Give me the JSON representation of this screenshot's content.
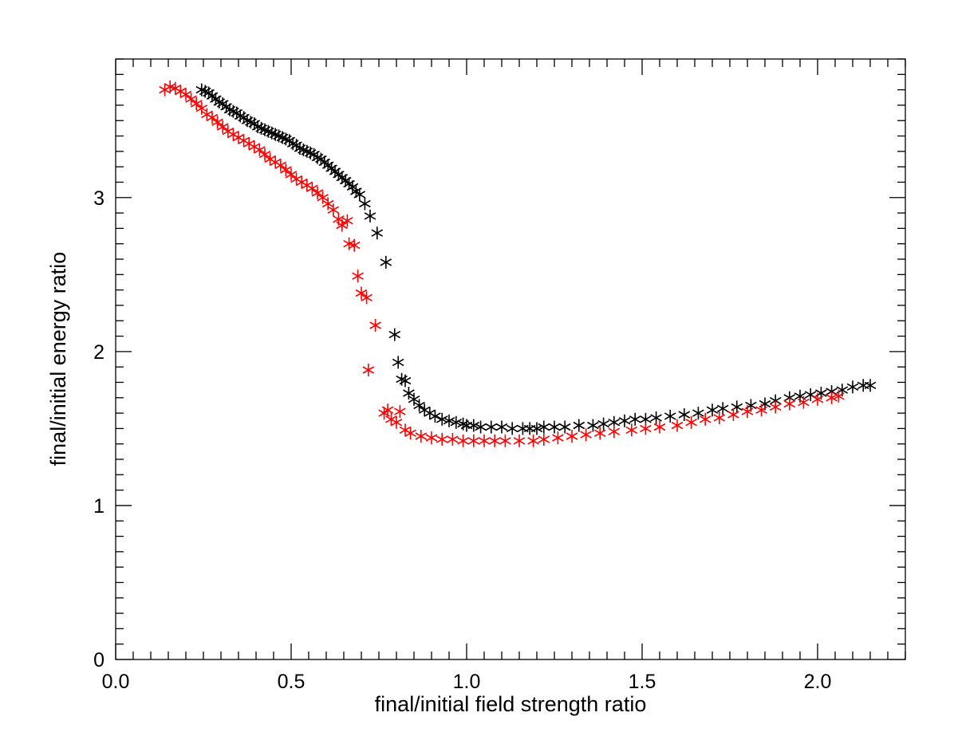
{
  "chart_data": {
    "type": "scatter",
    "title": "",
    "xlabel": "final/initial field strength ratio",
    "ylabel": "final/initial energy ratio",
    "xlim": [
      0.0,
      2.25
    ],
    "ylim": [
      0,
      3.9
    ],
    "x_ticks": [
      0.0,
      0.5,
      1.0,
      1.5,
      2.0
    ],
    "x_tick_labels": [
      "0.0",
      "0.5",
      "1.0",
      "1.5",
      "2.0"
    ],
    "y_ticks": [
      0,
      1,
      2,
      3
    ],
    "y_tick_labels": [
      "0",
      "1",
      "2",
      "3"
    ],
    "x_minor_step": 0.05,
    "y_minor_step": 0.1,
    "marker": "asterisk",
    "grid": false,
    "legend": "none",
    "series": [
      {
        "color": "#000000",
        "points": [
          [
            0.245,
            3.7
          ],
          [
            0.255,
            3.69
          ],
          [
            0.265,
            3.68
          ],
          [
            0.275,
            3.66
          ],
          [
            0.285,
            3.64
          ],
          [
            0.295,
            3.62
          ],
          [
            0.305,
            3.61
          ],
          [
            0.315,
            3.59
          ],
          [
            0.325,
            3.57
          ],
          [
            0.335,
            3.56
          ],
          [
            0.345,
            3.55
          ],
          [
            0.355,
            3.53
          ],
          [
            0.365,
            3.52
          ],
          [
            0.375,
            3.5
          ],
          [
            0.385,
            3.49
          ],
          [
            0.395,
            3.48
          ],
          [
            0.405,
            3.46
          ],
          [
            0.415,
            3.45
          ],
          [
            0.425,
            3.44
          ],
          [
            0.435,
            3.43
          ],
          [
            0.445,
            3.42
          ],
          [
            0.455,
            3.41
          ],
          [
            0.465,
            3.4
          ],
          [
            0.475,
            3.39
          ],
          [
            0.485,
            3.38
          ],
          [
            0.495,
            3.37
          ],
          [
            0.505,
            3.35
          ],
          [
            0.515,
            3.34
          ],
          [
            0.525,
            3.32
          ],
          [
            0.535,
            3.31
          ],
          [
            0.545,
            3.3
          ],
          [
            0.555,
            3.29
          ],
          [
            0.565,
            3.28
          ],
          [
            0.575,
            3.26
          ],
          [
            0.585,
            3.25
          ],
          [
            0.595,
            3.23
          ],
          [
            0.605,
            3.21
          ],
          [
            0.615,
            3.19
          ],
          [
            0.625,
            3.17
          ],
          [
            0.635,
            3.15
          ],
          [
            0.645,
            3.13
          ],
          [
            0.655,
            3.11
          ],
          [
            0.665,
            3.09
          ],
          [
            0.675,
            3.07
          ],
          [
            0.685,
            3.04
          ],
          [
            0.695,
            3.02
          ],
          [
            0.71,
            2.96
          ],
          [
            0.725,
            2.88
          ],
          [
            0.745,
            2.77
          ],
          [
            0.77,
            2.58
          ],
          [
            0.795,
            2.11
          ],
          [
            0.805,
            1.93
          ],
          [
            0.815,
            1.82
          ],
          [
            0.825,
            1.81
          ],
          [
            0.835,
            1.73
          ],
          [
            0.85,
            1.69
          ],
          [
            0.865,
            1.65
          ],
          [
            0.88,
            1.62
          ],
          [
            0.895,
            1.6
          ],
          [
            0.91,
            1.58
          ],
          [
            0.93,
            1.56
          ],
          [
            0.95,
            1.55
          ],
          [
            0.97,
            1.54
          ],
          [
            0.99,
            1.53
          ],
          [
            1.0,
            1.52
          ],
          [
            1.02,
            1.52
          ],
          [
            1.04,
            1.51
          ],
          [
            1.07,
            1.51
          ],
          [
            1.1,
            1.51
          ],
          [
            1.13,
            1.5
          ],
          [
            1.16,
            1.5
          ],
          [
            1.18,
            1.5
          ],
          [
            1.2,
            1.5
          ],
          [
            1.22,
            1.51
          ],
          [
            1.25,
            1.51
          ],
          [
            1.28,
            1.51
          ],
          [
            1.32,
            1.52
          ],
          [
            1.36,
            1.52
          ],
          [
            1.39,
            1.53
          ],
          [
            1.42,
            1.54
          ],
          [
            1.45,
            1.55
          ],
          [
            1.48,
            1.56
          ],
          [
            1.51,
            1.56
          ],
          [
            1.54,
            1.57
          ],
          [
            1.58,
            1.58
          ],
          [
            1.62,
            1.59
          ],
          [
            1.66,
            1.6
          ],
          [
            1.7,
            1.62
          ],
          [
            1.73,
            1.63
          ],
          [
            1.77,
            1.64
          ],
          [
            1.81,
            1.65
          ],
          [
            1.85,
            1.66
          ],
          [
            1.88,
            1.68
          ],
          [
            1.92,
            1.7
          ],
          [
            1.95,
            1.71
          ],
          [
            1.98,
            1.72
          ],
          [
            2.01,
            1.73
          ],
          [
            2.04,
            1.74
          ],
          [
            2.07,
            1.75
          ],
          [
            2.1,
            1.77
          ],
          [
            2.13,
            1.78
          ],
          [
            2.15,
            1.78
          ]
        ]
      },
      {
        "color": "#ff0000",
        "points": [
          [
            0.14,
            3.7
          ],
          [
            0.155,
            3.72
          ],
          [
            0.17,
            3.71
          ],
          [
            0.185,
            3.69
          ],
          [
            0.2,
            3.67
          ],
          [
            0.215,
            3.64
          ],
          [
            0.23,
            3.61
          ],
          [
            0.245,
            3.58
          ],
          [
            0.26,
            3.54
          ],
          [
            0.275,
            3.52
          ],
          [
            0.29,
            3.49
          ],
          [
            0.305,
            3.46
          ],
          [
            0.32,
            3.43
          ],
          [
            0.335,
            3.41
          ],
          [
            0.35,
            3.39
          ],
          [
            0.365,
            3.37
          ],
          [
            0.38,
            3.35
          ],
          [
            0.395,
            3.33
          ],
          [
            0.41,
            3.31
          ],
          [
            0.425,
            3.28
          ],
          [
            0.44,
            3.25
          ],
          [
            0.455,
            3.23
          ],
          [
            0.47,
            3.21
          ],
          [
            0.485,
            3.18
          ],
          [
            0.5,
            3.15
          ],
          [
            0.515,
            3.12
          ],
          [
            0.53,
            3.1
          ],
          [
            0.545,
            3.08
          ],
          [
            0.56,
            3.06
          ],
          [
            0.575,
            3.03
          ],
          [
            0.59,
            3.0
          ],
          [
            0.605,
            2.96
          ],
          [
            0.62,
            2.92
          ],
          [
            0.635,
            2.86
          ],
          [
            0.645,
            2.82
          ],
          [
            0.66,
            2.85
          ],
          [
            0.665,
            2.7
          ],
          [
            0.68,
            2.69
          ],
          [
            0.69,
            2.49
          ],
          [
            0.7,
            2.38
          ],
          [
            0.715,
            2.35
          ],
          [
            0.72,
            1.88
          ],
          [
            0.74,
            2.17
          ],
          [
            0.765,
            1.6
          ],
          [
            0.775,
            1.62
          ],
          [
            0.785,
            1.56
          ],
          [
            0.8,
            1.54
          ],
          [
            0.81,
            1.61
          ],
          [
            0.825,
            1.49
          ],
          [
            0.84,
            1.47
          ],
          [
            0.87,
            1.45
          ],
          [
            0.9,
            1.44
          ],
          [
            0.93,
            1.43
          ],
          [
            0.96,
            1.43
          ],
          [
            0.99,
            1.42
          ],
          [
            1.02,
            1.42
          ],
          [
            1.05,
            1.42
          ],
          [
            1.08,
            1.42
          ],
          [
            1.11,
            1.42
          ],
          [
            1.15,
            1.42
          ],
          [
            1.19,
            1.42
          ],
          [
            1.22,
            1.43
          ],
          [
            1.26,
            1.44
          ],
          [
            1.3,
            1.45
          ],
          [
            1.34,
            1.46
          ],
          [
            1.38,
            1.47
          ],
          [
            1.42,
            1.48
          ],
          [
            1.47,
            1.49
          ],
          [
            1.51,
            1.5
          ],
          [
            1.55,
            1.51
          ],
          [
            1.6,
            1.52
          ],
          [
            1.64,
            1.54
          ],
          [
            1.68,
            1.56
          ],
          [
            1.72,
            1.57
          ],
          [
            1.76,
            1.59
          ],
          [
            1.8,
            1.61
          ],
          [
            1.84,
            1.62
          ],
          [
            1.88,
            1.64
          ],
          [
            1.92,
            1.66
          ],
          [
            1.96,
            1.67
          ],
          [
            2.0,
            1.69
          ],
          [
            2.04,
            1.7
          ],
          [
            2.06,
            1.71
          ]
        ]
      }
    ]
  }
}
